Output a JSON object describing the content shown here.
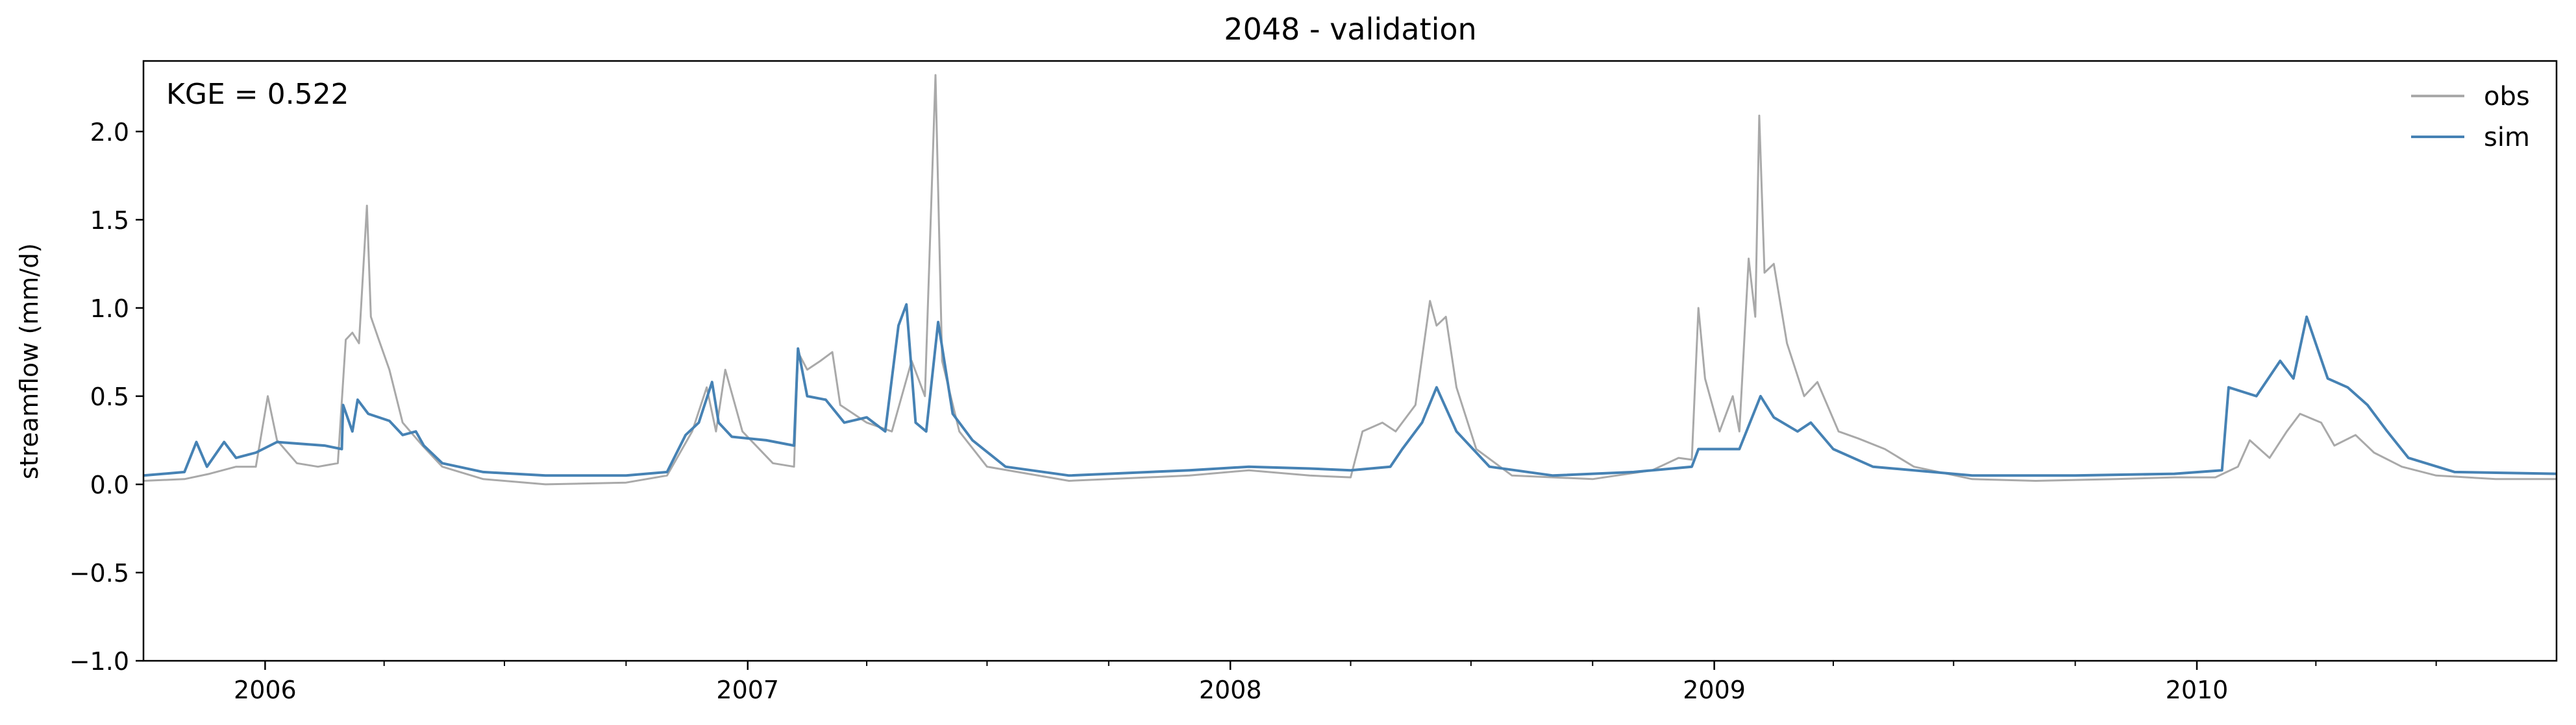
{
  "chart_data": {
    "type": "line",
    "title": "2048 - validation",
    "ylabel": "streamflow (mm/d)",
    "xlabel": "",
    "annotation": "KGE = 0.522",
    "xlim": [
      "2005-10-01",
      "2010-09-30"
    ],
    "ylim": [
      -1.0,
      2.4
    ],
    "yticks": [
      -1.0,
      -0.5,
      0.0,
      0.5,
      1.0,
      1.5,
      2.0
    ],
    "ytick_labels": [
      "−1.0",
      "−0.5",
      "0.0",
      "0.5",
      "1.0",
      "1.5",
      "2.0"
    ],
    "xticks": [
      "2006-01-01",
      "2007-01-01",
      "2008-01-01",
      "2009-01-01",
      "2010-01-01"
    ],
    "xtick_labels": [
      "2006",
      "2007",
      "2008",
      "2009",
      "2010"
    ],
    "legend_position": "top-right",
    "grid": false,
    "series": [
      {
        "name": "obs",
        "color": "#a9a9a9",
        "points": [
          [
            "2005-10-01",
            0.02
          ],
          [
            "2005-11-01",
            0.03
          ],
          [
            "2005-11-20",
            0.06
          ],
          [
            "2005-12-10",
            0.1
          ],
          [
            "2005-12-25",
            0.1
          ],
          [
            "2006-01-03",
            0.5
          ],
          [
            "2006-01-10",
            0.25
          ],
          [
            "2006-01-25",
            0.12
          ],
          [
            "2006-02-10",
            0.1
          ],
          [
            "2006-02-25",
            0.12
          ],
          [
            "2006-03-03",
            0.82
          ],
          [
            "2006-03-08",
            0.86
          ],
          [
            "2006-03-13",
            0.8
          ],
          [
            "2006-03-19",
            1.58
          ],
          [
            "2006-03-22",
            0.95
          ],
          [
            "2006-03-28",
            0.82
          ],
          [
            "2006-04-05",
            0.65
          ],
          [
            "2006-04-15",
            0.35
          ],
          [
            "2006-04-30",
            0.22
          ],
          [
            "2006-05-15",
            0.1
          ],
          [
            "2006-06-15",
            0.03
          ],
          [
            "2006-08-01",
            0.0
          ],
          [
            "2006-10-01",
            0.01
          ],
          [
            "2006-11-01",
            0.05
          ],
          [
            "2006-11-20",
            0.3
          ],
          [
            "2006-12-01",
            0.55
          ],
          [
            "2006-12-08",
            0.3
          ],
          [
            "2006-12-15",
            0.65
          ],
          [
            "2006-12-28",
            0.3
          ],
          [
            "2007-01-20",
            0.12
          ],
          [
            "2007-02-05",
            0.1
          ],
          [
            "2007-02-08",
            0.75
          ],
          [
            "2007-02-15",
            0.65
          ],
          [
            "2007-02-25",
            0.7
          ],
          [
            "2007-03-06",
            0.75
          ],
          [
            "2007-03-12",
            0.45
          ],
          [
            "2007-04-01",
            0.35
          ],
          [
            "2007-04-20",
            0.3
          ],
          [
            "2007-05-05",
            0.7
          ],
          [
            "2007-05-15",
            0.5
          ],
          [
            "2007-05-23",
            2.32
          ],
          [
            "2007-05-28",
            0.7
          ],
          [
            "2007-06-10",
            0.3
          ],
          [
            "2007-07-01",
            0.1
          ],
          [
            "2007-09-01",
            0.02
          ],
          [
            "2007-12-01",
            0.05
          ],
          [
            "2008-01-15",
            0.08
          ],
          [
            "2008-03-01",
            0.05
          ],
          [
            "2008-04-01",
            0.04
          ],
          [
            "2008-04-10",
            0.3
          ],
          [
            "2008-04-25",
            0.35
          ],
          [
            "2008-05-05",
            0.3
          ],
          [
            "2008-05-20",
            0.45
          ],
          [
            "2008-05-31",
            1.04
          ],
          [
            "2008-06-05",
            0.9
          ],
          [
            "2008-06-12",
            0.95
          ],
          [
            "2008-06-20",
            0.55
          ],
          [
            "2008-07-05",
            0.2
          ],
          [
            "2008-08-01",
            0.05
          ],
          [
            "2008-10-01",
            0.03
          ],
          [
            "2008-11-15",
            0.08
          ],
          [
            "2008-12-05",
            0.15
          ],
          [
            "2008-12-15",
            0.14
          ],
          [
            "2008-12-20",
            1.0
          ],
          [
            "2008-12-25",
            0.6
          ],
          [
            "2009-01-05",
            0.3
          ],
          [
            "2009-01-15",
            0.5
          ],
          [
            "2009-01-20",
            0.3
          ],
          [
            "2009-01-27",
            1.28
          ],
          [
            "2009-02-01",
            0.95
          ],
          [
            "2009-02-04",
            2.09
          ],
          [
            "2009-02-08",
            1.2
          ],
          [
            "2009-02-15",
            1.25
          ],
          [
            "2009-02-25",
            0.8
          ],
          [
            "2009-03-10",
            0.5
          ],
          [
            "2009-03-20",
            0.58
          ],
          [
            "2009-04-05",
            0.3
          ],
          [
            "2009-04-20",
            0.26
          ],
          [
            "2009-05-10",
            0.2
          ],
          [
            "2009-06-01",
            0.1
          ],
          [
            "2009-07-15",
            0.03
          ],
          [
            "2009-09-01",
            0.02
          ],
          [
            "2009-11-01",
            0.03
          ],
          [
            "2009-12-15",
            0.04
          ],
          [
            "2010-01-15",
            0.04
          ],
          [
            "2010-02-01",
            0.1
          ],
          [
            "2010-02-10",
            0.25
          ],
          [
            "2010-02-25",
            0.15
          ],
          [
            "2010-03-10",
            0.3
          ],
          [
            "2010-03-20",
            0.4
          ],
          [
            "2010-04-05",
            0.35
          ],
          [
            "2010-04-15",
            0.22
          ],
          [
            "2010-05-01",
            0.28
          ],
          [
            "2010-05-15",
            0.18
          ],
          [
            "2010-06-05",
            0.1
          ],
          [
            "2010-07-01",
            0.05
          ],
          [
            "2010-08-15",
            0.03
          ],
          [
            "2010-09-30",
            0.03
          ]
        ]
      },
      {
        "name": "sim",
        "color": "#4682b4",
        "points": [
          [
            "2005-10-01",
            0.05
          ],
          [
            "2005-11-01",
            0.07
          ],
          [
            "2005-11-10",
            0.24
          ],
          [
            "2005-11-18",
            0.1
          ],
          [
            "2005-12-01",
            0.24
          ],
          [
            "2005-12-10",
            0.15
          ],
          [
            "2005-12-25",
            0.18
          ],
          [
            "2006-01-10",
            0.24
          ],
          [
            "2006-02-15",
            0.22
          ],
          [
            "2006-02-28",
            0.2
          ],
          [
            "2006-03-01",
            0.45
          ],
          [
            "2006-03-08",
            0.3
          ],
          [
            "2006-03-12",
            0.48
          ],
          [
            "2006-03-20",
            0.4
          ],
          [
            "2006-04-05",
            0.36
          ],
          [
            "2006-04-15",
            0.28
          ],
          [
            "2006-04-25",
            0.3
          ],
          [
            "2006-05-01",
            0.22
          ],
          [
            "2006-05-15",
            0.12
          ],
          [
            "2006-06-15",
            0.07
          ],
          [
            "2006-08-01",
            0.05
          ],
          [
            "2006-10-01",
            0.05
          ],
          [
            "2006-11-01",
            0.07
          ],
          [
            "2006-11-15",
            0.28
          ],
          [
            "2006-11-25",
            0.35
          ],
          [
            "2006-12-05",
            0.58
          ],
          [
            "2006-12-10",
            0.35
          ],
          [
            "2006-12-20",
            0.27
          ],
          [
            "2007-01-15",
            0.25
          ],
          [
            "2007-02-05",
            0.22
          ],
          [
            "2007-02-08",
            0.77
          ],
          [
            "2007-02-15",
            0.5
          ],
          [
            "2007-03-01",
            0.48
          ],
          [
            "2007-03-15",
            0.35
          ],
          [
            "2007-04-01",
            0.38
          ],
          [
            "2007-04-15",
            0.3
          ],
          [
            "2007-04-25",
            0.9
          ],
          [
            "2007-05-01",
            1.02
          ],
          [
            "2007-05-08",
            0.35
          ],
          [
            "2007-05-16",
            0.3
          ],
          [
            "2007-05-25",
            0.92
          ],
          [
            "2007-06-05",
            0.4
          ],
          [
            "2007-06-20",
            0.25
          ],
          [
            "2007-07-15",
            0.1
          ],
          [
            "2007-09-01",
            0.05
          ],
          [
            "2007-12-01",
            0.08
          ],
          [
            "2008-01-15",
            0.1
          ],
          [
            "2008-03-01",
            0.09
          ],
          [
            "2008-04-01",
            0.08
          ],
          [
            "2008-05-01",
            0.1
          ],
          [
            "2008-05-10",
            0.2
          ],
          [
            "2008-05-25",
            0.35
          ],
          [
            "2008-06-05",
            0.55
          ],
          [
            "2008-06-20",
            0.3
          ],
          [
            "2008-07-15",
            0.1
          ],
          [
            "2008-09-01",
            0.05
          ],
          [
            "2008-11-01",
            0.07
          ],
          [
            "2008-12-15",
            0.1
          ],
          [
            "2008-12-20",
            0.2
          ],
          [
            "2009-01-20",
            0.2
          ],
          [
            "2009-02-05",
            0.5
          ],
          [
            "2009-02-15",
            0.38
          ],
          [
            "2009-03-05",
            0.3
          ],
          [
            "2009-03-15",
            0.35
          ],
          [
            "2009-04-01",
            0.2
          ],
          [
            "2009-05-01",
            0.1
          ],
          [
            "2009-07-15",
            0.05
          ],
          [
            "2009-10-01",
            0.05
          ],
          [
            "2009-12-15",
            0.06
          ],
          [
            "2010-01-20",
            0.08
          ],
          [
            "2010-01-25",
            0.55
          ],
          [
            "2010-02-15",
            0.5
          ],
          [
            "2010-03-05",
            0.7
          ],
          [
            "2010-03-15",
            0.6
          ],
          [
            "2010-03-25",
            0.95
          ],
          [
            "2010-04-10",
            0.6
          ],
          [
            "2010-04-25",
            0.55
          ],
          [
            "2010-05-10",
            0.45
          ],
          [
            "2010-05-25",
            0.3
          ],
          [
            "2010-06-10",
            0.15
          ],
          [
            "2010-07-15",
            0.07
          ],
          [
            "2010-09-30",
            0.06
          ]
        ]
      }
    ]
  }
}
